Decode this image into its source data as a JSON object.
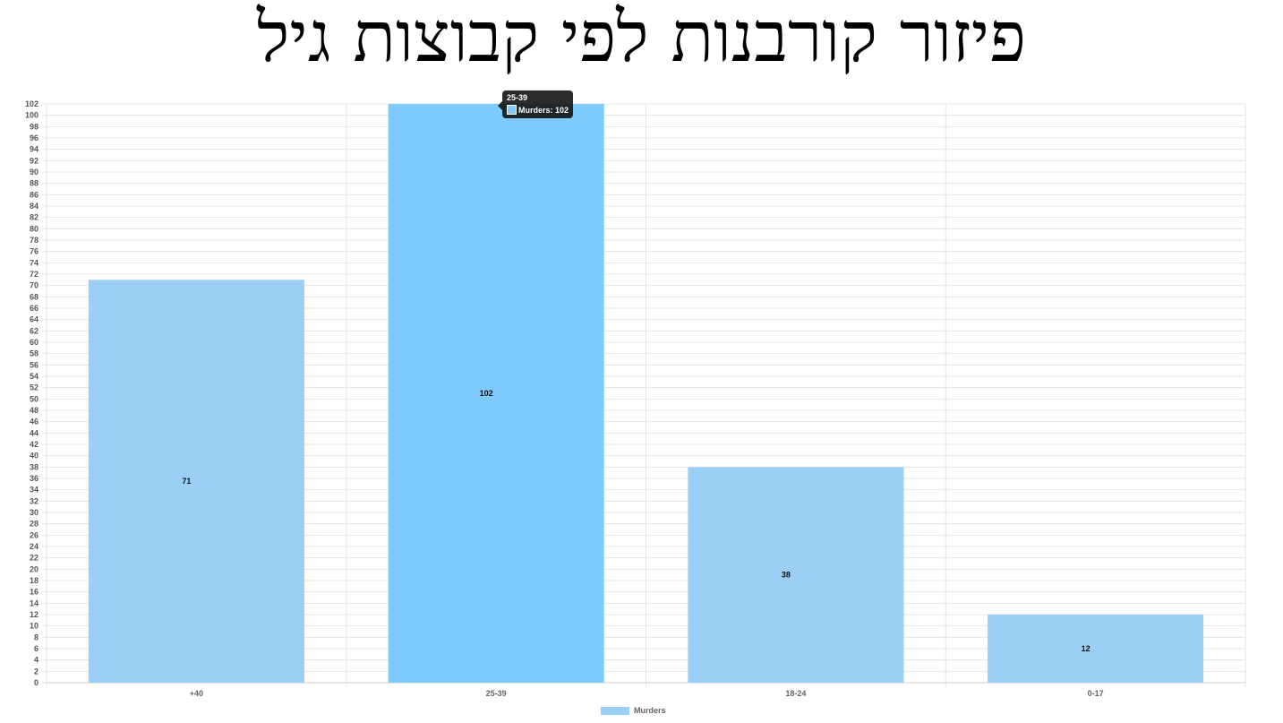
{
  "chart_data": {
    "type": "bar",
    "title": "פיזור קורבנות לפי קבוצות גיל",
    "categories": [
      "+40",
      "25-39",
      "18-24",
      "0-17"
    ],
    "series": [
      {
        "name": "Murders",
        "values": [
          71,
          102,
          38,
          12
        ]
      }
    ],
    "ylim": [
      0,
      102
    ],
    "ytick_step": 2,
    "grid": true,
    "legend": "bottom-center",
    "colors": {
      "bar": "#9bcff5",
      "bar_hover": "#7fcafc",
      "grid": "#e6e6e6"
    },
    "highlighted_index": 1,
    "tooltip": {
      "title": "25-39",
      "label": "Murders: 102"
    }
  }
}
